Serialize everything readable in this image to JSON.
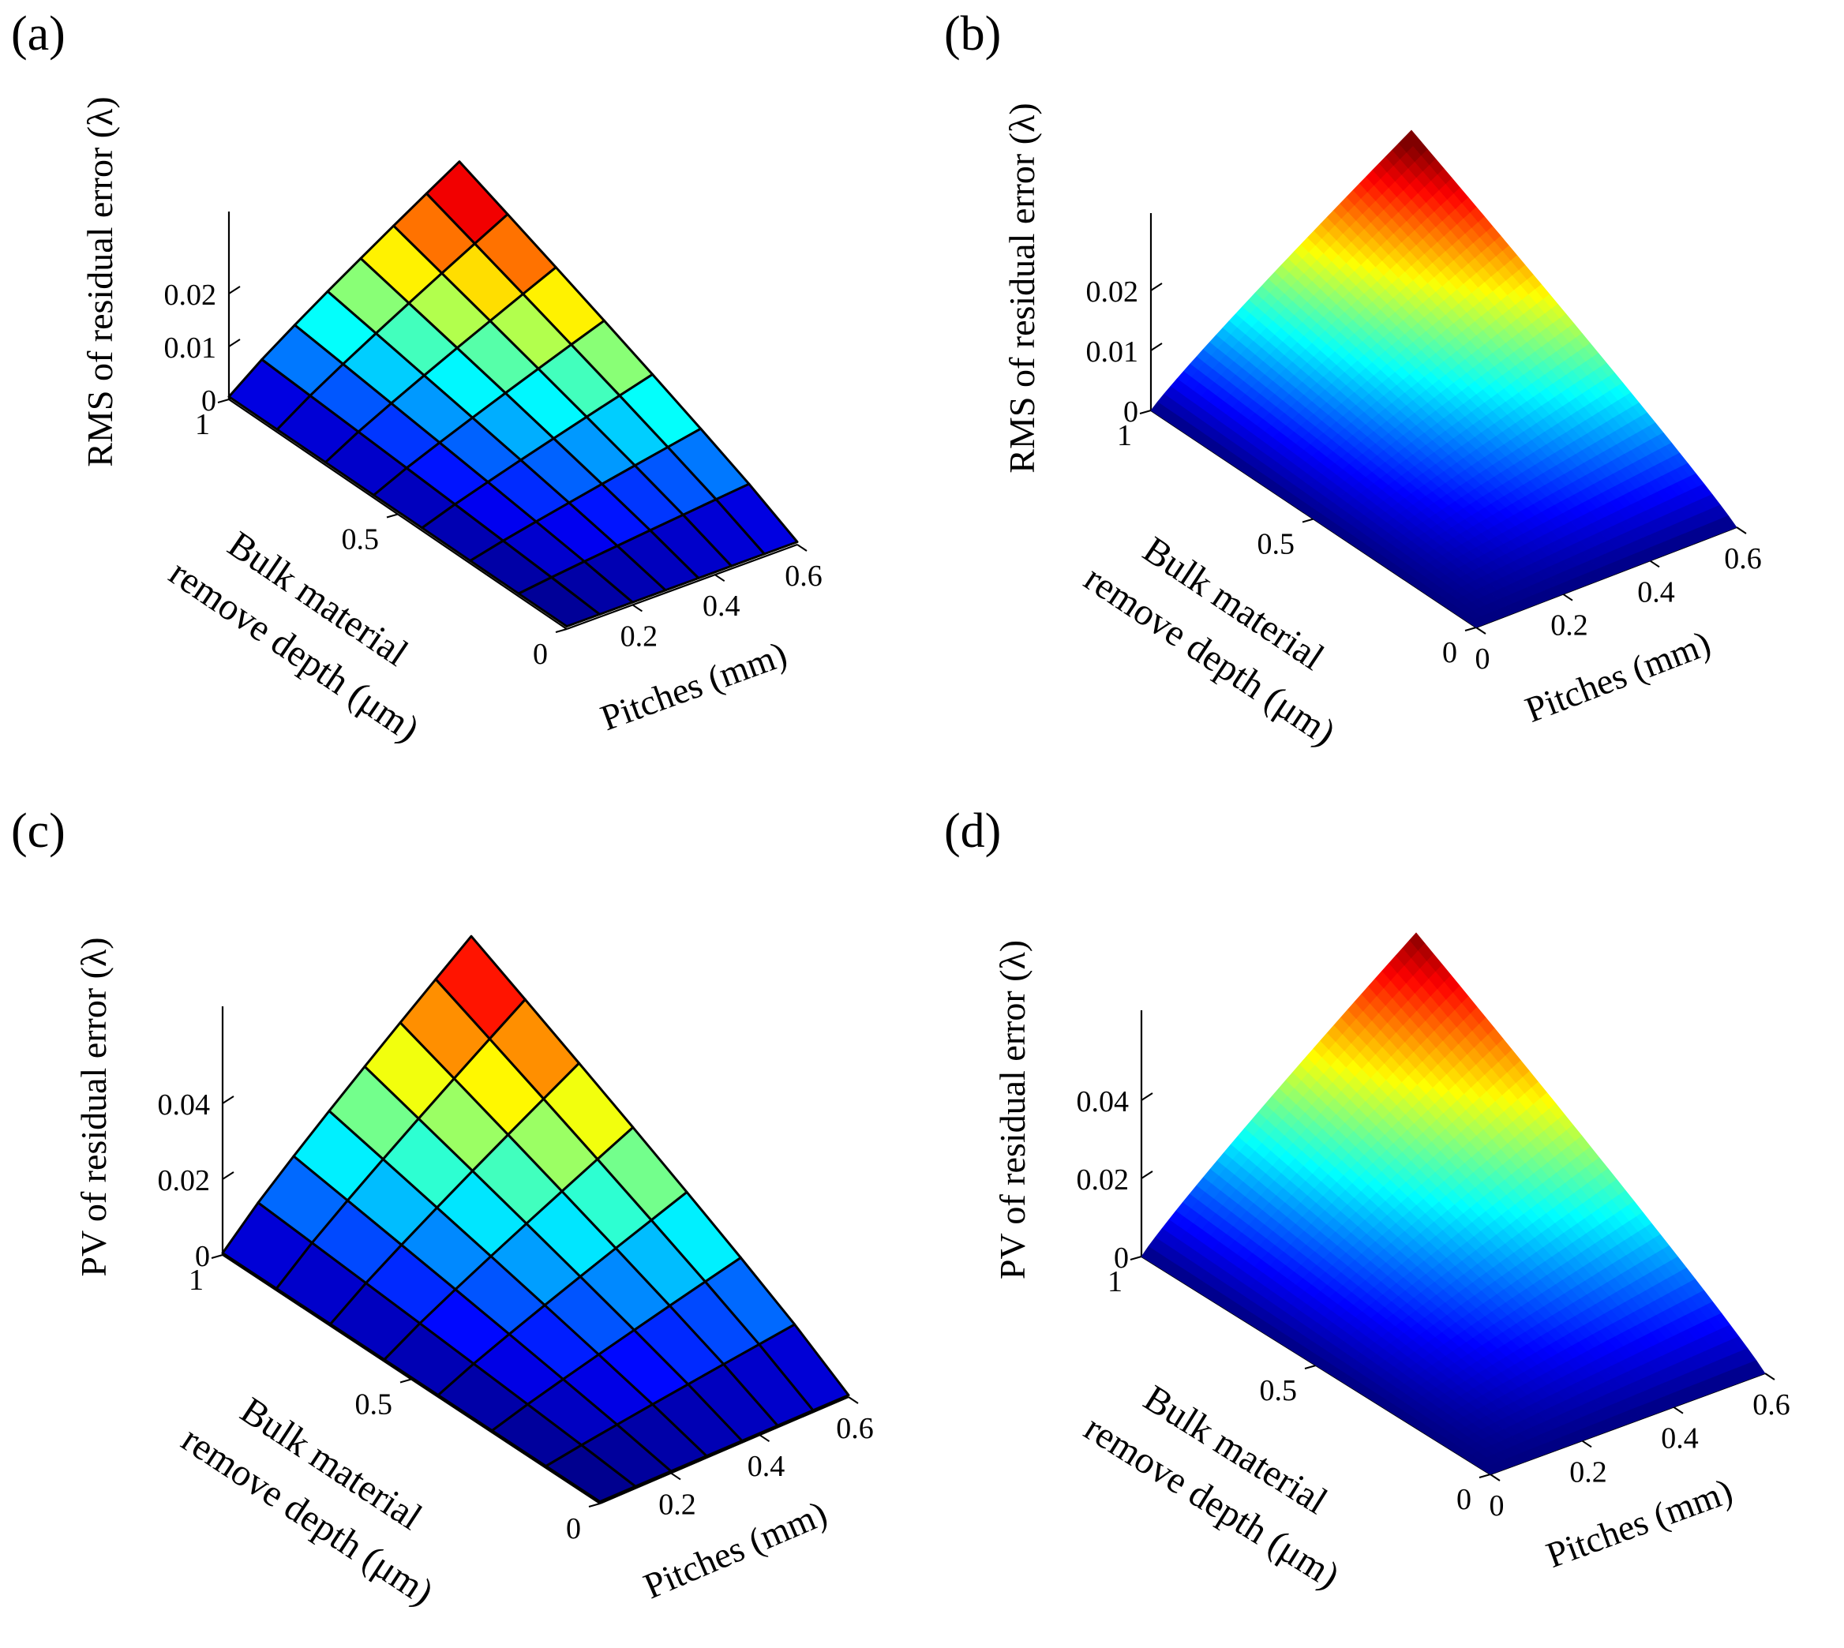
{
  "figure": {
    "charts": [
      {
        "label": "(a)",
        "zlabel": "RMS of residual error (λ)",
        "ylabel_line1": "Bulk material",
        "ylabel_line2": "remove depth (μm)",
        "xlabel": "Pitches (mm)"
      },
      {
        "label": "(b)",
        "zlabel": "RMS of residual error (λ)",
        "ylabel_line1": "Bulk material",
        "ylabel_line2": "remove depth (μm)",
        "xlabel": "Pitches (mm)"
      },
      {
        "label": "(c)",
        "zlabel": "PV of residual error (λ)",
        "ylabel_line1": "Bulk material",
        "ylabel_line2": "remove depth (μm)",
        "xlabel": "Pitches (mm)"
      },
      {
        "label": "(d)",
        "zlabel": "PV of residual error (λ)",
        "ylabel_line1": "Bulk material",
        "ylabel_line2": "remove depth (μm)",
        "xlabel": "Pitches (mm)"
      }
    ]
  },
  "chart_data": [
    {
      "type": "surface",
      "style": "coarse-grid",
      "grid_n": 7,
      "x_ticks": [
        "0.2",
        "0.4",
        "0.6"
      ],
      "x_tick_values": [
        0.2,
        0.4,
        0.6
      ],
      "y_ticks": [
        "0",
        "0.5",
        "1"
      ],
      "y_tick_values": [
        0,
        0.5,
        1
      ],
      "z_ticks": [
        "0",
        "0.01",
        "0.02"
      ],
      "z_tick_values": [
        0,
        0.01,
        0.02
      ],
      "xlim": [
        0.04,
        0.6
      ],
      "ylim": [
        0,
        1
      ],
      "zlim": [
        0,
        0.03
      ],
      "z_max": 0.029,
      "z_min": 0.0005,
      "colormap": "jet"
    },
    {
      "type": "surface",
      "style": "fine-smooth",
      "grid_n": 40,
      "x_ticks": [
        "0",
        "0.2",
        "0.4",
        "0.6"
      ],
      "x_tick_values": [
        0,
        0.2,
        0.4,
        0.6
      ],
      "y_ticks": [
        "0",
        "0.5",
        "1"
      ],
      "y_tick_values": [
        0,
        0.5,
        1
      ],
      "z_ticks": [
        "0",
        "0.01",
        "0.02"
      ],
      "z_tick_values": [
        0,
        0.01,
        0.02
      ],
      "xlim": [
        0,
        0.6
      ],
      "ylim": [
        0,
        1
      ],
      "zlim": [
        0,
        0.03
      ],
      "z_max": 0.03,
      "z_min": 0,
      "colormap": "jet"
    },
    {
      "type": "surface",
      "style": "coarse-grid",
      "grid_n": 7,
      "x_ticks": [
        "0.2",
        "0.4",
        "0.6"
      ],
      "x_tick_values": [
        0.2,
        0.4,
        0.6
      ],
      "y_ticks": [
        "0",
        "0.5",
        "1"
      ],
      "y_tick_values": [
        0,
        0.5,
        1
      ],
      "z_ticks": [
        "0",
        "0.02",
        "0.04"
      ],
      "z_tick_values": [
        0,
        0.02,
        0.04
      ],
      "xlim": [
        0.04,
        0.6
      ],
      "ylim": [
        0,
        1
      ],
      "zlim": [
        0,
        0.06
      ],
      "z_max": 0.056,
      "z_min": 0.0005,
      "colormap": "jet"
    },
    {
      "type": "surface",
      "style": "fine-smooth",
      "grid_n": 40,
      "x_ticks": [
        "0",
        "0.2",
        "0.4",
        "0.6"
      ],
      "x_tick_values": [
        0,
        0.2,
        0.4,
        0.6
      ],
      "y_ticks": [
        "0",
        "0.5",
        "1"
      ],
      "y_tick_values": [
        0,
        0.5,
        1
      ],
      "z_ticks": [
        "0",
        "0.02",
        "0.04"
      ],
      "z_tick_values": [
        0,
        0.02,
        0.04
      ],
      "xlim": [
        0,
        0.6
      ],
      "ylim": [
        0,
        1
      ],
      "zlim": [
        0,
        0.06
      ],
      "z_max": 0.057,
      "z_min": 0,
      "colormap": "jet"
    }
  ]
}
